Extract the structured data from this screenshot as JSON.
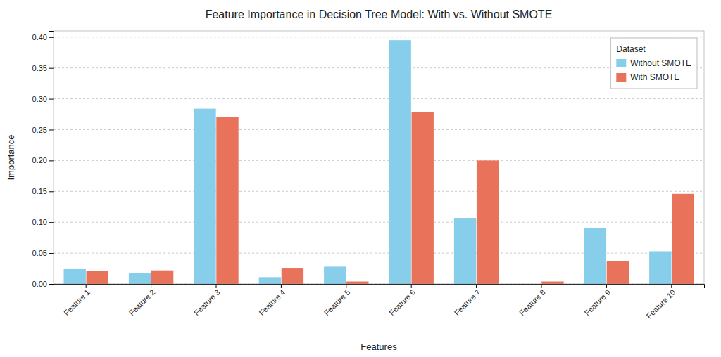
{
  "chart_data": {
    "type": "bar",
    "title": "Feature Importance in Decision Tree Model: With vs. Without SMOTE",
    "xlabel": "Features",
    "ylabel": "Importance",
    "categories": [
      "Feature 1",
      "Feature 2",
      "Feature 3",
      "Feature 4",
      "Feature 5",
      "Feature 6",
      "Feature 7",
      "Feature 8",
      "Feature 9",
      "Feature 10"
    ],
    "series": [
      {
        "name": "Without SMOTE",
        "color": "#87CEEB",
        "values": [
          0.024,
          0.018,
          0.284,
          0.011,
          0.028,
          0.395,
          0.107,
          0.0,
          0.091,
          0.053
        ]
      },
      {
        "name": "With SMOTE",
        "color": "#E8735A",
        "values": [
          0.021,
          0.022,
          0.27,
          0.025,
          0.004,
          0.278,
          0.2,
          0.004,
          0.037,
          0.146
        ]
      }
    ],
    "legend_title": "Dataset",
    "legend": "upper right",
    "ylim": [
      0,
      0.41
    ],
    "yticks": [
      {
        "value": 0.0,
        "label": "0.00"
      },
      0.05,
      {
        "value": 0.1,
        "label": "0.10"
      },
      0.15,
      {
        "value": 0.2,
        "label": "0.20"
      },
      0.25,
      {
        "value": 0.3,
        "label": "0.30"
      },
      0.35,
      {
        "value": 0.4,
        "label": "0.40"
      }
    ],
    "grid": true
  }
}
